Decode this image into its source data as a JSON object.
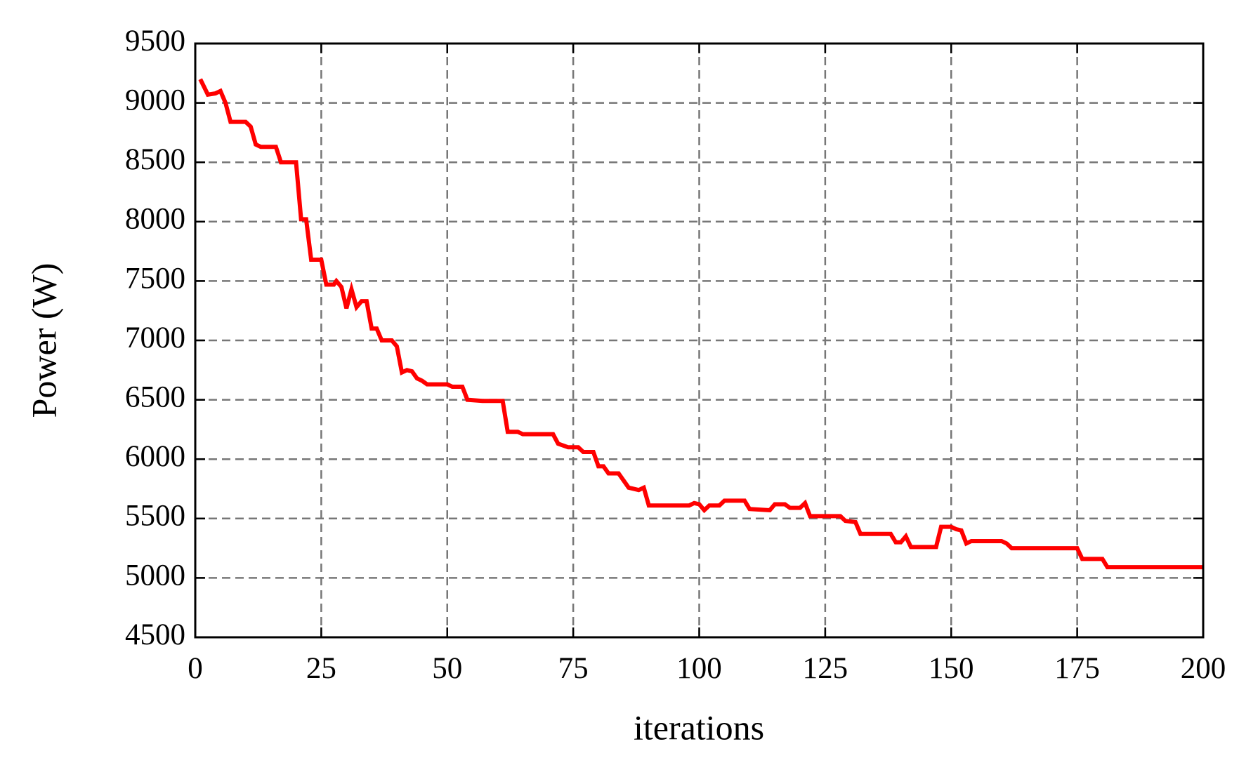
{
  "chart_data": {
    "type": "line",
    "xlabel": "iterations",
    "ylabel": "Power (W)",
    "xlim": [
      0,
      200
    ],
    "xticks": [
      0,
      25,
      50,
      75,
      100,
      125,
      150,
      175,
      200
    ],
    "ylim": [
      4500,
      9500
    ],
    "yticks": [
      4500,
      5000,
      5500,
      6000,
      6500,
      7000,
      7500,
      8000,
      8500,
      9000,
      9500
    ],
    "grid": true,
    "series": [
      {
        "color": "#ff0000",
        "x": [
          1,
          2.5,
          4,
          5,
          6,
          7,
          10,
          11,
          12,
          13,
          16,
          17,
          20,
          21,
          22,
          23,
          25,
          26,
          27.5,
          28,
          29,
          30,
          31,
          32,
          33,
          34,
          35,
          36,
          37,
          39,
          40,
          41,
          42,
          43,
          44,
          45,
          46,
          50,
          51,
          53,
          54,
          57,
          61,
          62,
          64,
          65,
          71,
          72,
          74,
          76,
          77,
          79,
          80,
          81,
          82,
          84,
          86,
          88,
          89,
          90,
          98,
          99,
          100,
          101,
          102,
          104,
          105,
          109,
          110,
          114,
          115,
          117,
          118,
          120,
          121,
          122,
          128,
          129,
          131,
          132,
          138,
          139,
          140,
          141,
          142,
          147,
          148,
          150,
          151,
          152,
          153,
          154,
          160,
          161,
          162,
          175,
          176,
          180,
          181,
          200
        ],
        "values": [
          9200,
          9070,
          9080,
          9100,
          9000,
          8840,
          8840,
          8800,
          8650,
          8630,
          8630,
          8500,
          8500,
          8020,
          8020,
          7680,
          7680,
          7470,
          7470,
          7500,
          7450,
          7270,
          7430,
          7280,
          7330,
          7330,
          7100,
          7100,
          7000,
          7000,
          6950,
          6730,
          6750,
          6740,
          6680,
          6660,
          6630,
          6630,
          6610,
          6610,
          6500,
          6490,
          6490,
          6230,
          6230,
          6210,
          6210,
          6130,
          6100,
          6100,
          6060,
          6060,
          5940,
          5940,
          5880,
          5880,
          5760,
          5740,
          5760,
          5610,
          5610,
          5630,
          5620,
          5570,
          5610,
          5610,
          5650,
          5650,
          5580,
          5570,
          5620,
          5620,
          5590,
          5590,
          5630,
          5520,
          5520,
          5480,
          5470,
          5370,
          5370,
          5300,
          5300,
          5350,
          5260,
          5260,
          5430,
          5430,
          5410,
          5400,
          5290,
          5310,
          5310,
          5290,
          5250,
          5250,
          5160,
          5160,
          5090,
          5090
        ]
      }
    ]
  }
}
